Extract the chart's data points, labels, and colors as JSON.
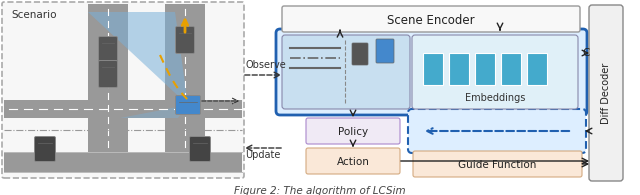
{
  "title": "Figure 2: The algorithm of LCSim",
  "scenario_label": "Scenario",
  "observe_label": "Observe",
  "update_label": "Update",
  "scene_encoder_label": "Scene Encoder",
  "embeddings_label": "Embeddings",
  "policy_label": "Policy",
  "action_label": "Action",
  "guide_function_label": "Guide Function",
  "diff_decoder_label": "Diff Decoder",
  "c_label": "C",
  "bg_color": "#ffffff",
  "border_blue": "#2060b0",
  "arrow_color": "#222222",
  "road_color": "#999999",
  "road_dark": "#777777",
  "blue_cone": "#7ab0d8",
  "car_blue": "#4488cc",
  "emb_blue": "#44aacc",
  "policy_face": "#f0eaf5",
  "policy_edge": "#aa88cc",
  "tan_face": "#fae8d8",
  "tan_edge": "#d4aa80",
  "enc_face": "#f8f8f8",
  "enc_edge": "#999999",
  "blue_box_face": "#ddeeff",
  "blue_box_edge": "#2060b0",
  "obs_face": "#c8dff0",
  "obs_edge": "#8888aa",
  "emb_face": "#e0f0f8",
  "emb_edge": "#8888aa",
  "guide_box_face": "#ddeeff",
  "guide_box_edge": "#2060b0",
  "dd_face": "#f0f0f0",
  "dd_edge": "#888888"
}
